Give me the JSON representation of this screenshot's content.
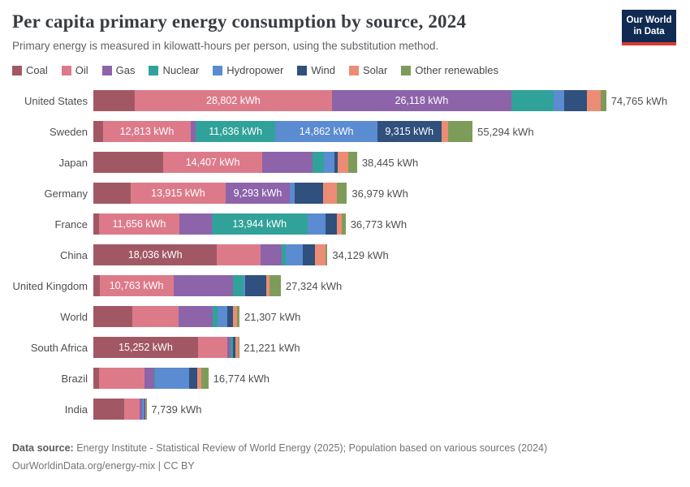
{
  "logo": {
    "line1": "Our World",
    "line2": "in Data",
    "bg": "#102a52",
    "accent": "#d73a33"
  },
  "chart_data": {
    "type": "bar",
    "stacked": true,
    "orientation": "horizontal",
    "title": "Per capita primary energy consumption by source, 2024",
    "subtitle": "Primary energy is measured in kilowatt-hours per person, using the substitution method.",
    "unit": "kWh",
    "legend_position": "top",
    "grid": false,
    "xlim": [
      0,
      76000
    ],
    "categories": [
      "United States",
      "Sweden",
      "Japan",
      "Germany",
      "France",
      "China",
      "United Kingdom",
      "World",
      "South Africa",
      "Brazil",
      "India"
    ],
    "totals": [
      74765,
      55294,
      38445,
      36979,
      36773,
      34129,
      27324,
      21307,
      21221,
      16774,
      7739
    ],
    "total_labels": [
      "74,765 kWh",
      "55,294 kWh",
      "38,445 kWh",
      "36,979 kWh",
      "36,773 kWh",
      "34,129 kWh",
      "27,324 kWh",
      "21,307 kWh",
      "21,221 kWh",
      "16,774 kWh",
      "7,739 kWh"
    ],
    "series": [
      {
        "name": "Coal",
        "color": "#a25864",
        "values": [
          6000,
          1400,
          10200,
          5400,
          850,
          18036,
          900,
          5677,
          15252,
          817,
          4450
        ],
        "labels": [
          "",
          "",
          "",
          "",
          "",
          "18,036 kWh",
          "",
          "",
          "15,252 kWh",
          "",
          ""
        ]
      },
      {
        "name": "Oil",
        "color": "#dd7a8a",
        "values": [
          28802,
          12813,
          14407,
          13915,
          11656,
          6375,
          10763,
          6804,
          4290,
          6694,
          2280
        ],
        "labels": [
          "28,802 kWh",
          "12,813 kWh",
          "14,407 kWh",
          "13,915 kWh",
          "11,656 kWh",
          "",
          "10,763 kWh",
          "",
          "",
          "",
          ""
        ]
      },
      {
        "name": "Gas",
        "color": "#8d63aa",
        "values": [
          26118,
          700,
          7320,
          9293,
          4750,
          3012,
          8728,
          4938,
          450,
          1401,
          320
        ],
        "labels": [
          "26,118 kWh",
          "",
          "",
          "9,293 kWh",
          "",
          "",
          "",
          "",
          "",
          "",
          ""
        ]
      },
      {
        "name": "Nuclear",
        "color": "#31a299",
        "values": [
          6200,
          11636,
          1680,
          0,
          13944,
          587,
          1448,
          700,
          350,
          117,
          80
        ],
        "labels": [
          "",
          "11,636 kWh",
          "",
          "",
          "13,944 kWh",
          "",
          "",
          "",
          "",
          "",
          ""
        ]
      },
      {
        "name": "Hydropower",
        "color": "#5b8bd0",
        "values": [
          1500,
          14862,
          1570,
          720,
          2600,
          2542,
          235,
          1361,
          40,
          4943,
          280
        ],
        "labels": [
          "",
          "14,862 kWh",
          "",
          "",
          "",
          "",
          "",
          "",
          "",
          "",
          ""
        ]
      },
      {
        "name": "Wind",
        "color": "#30507d",
        "values": [
          3300,
          9315,
          390,
          4150,
          1700,
          1760,
          3092,
          855,
          330,
          1168,
          140
        ],
        "labels": [
          "",
          "9,315 kWh",
          "",
          "",
          "",
          "",
          "",
          "",
          "",
          "",
          ""
        ]
      },
      {
        "name": "Solar",
        "color": "#ec8c75",
        "values": [
          2100,
          1000,
          1570,
          2000,
          710,
          1564,
          509,
          622,
          430,
          584,
          160
        ],
        "labels": [
          "",
          "",
          "",
          "",
          "",
          "",
          "",
          "",
          "",
          "",
          ""
        ]
      },
      {
        "name": "Other renewables",
        "color": "#7e9c59",
        "values": [
          745,
          3568,
          1308,
          1501,
          563,
          253,
          1649,
          350,
          79,
          1050,
          29
        ],
        "labels": [
          "",
          "",
          "",
          "",
          "",
          "",
          "",
          "",
          "",
          "",
          ""
        ]
      }
    ]
  },
  "footer": {
    "source_label": "Data source:",
    "source_text": " Energy Institute - Statistical Review of World Energy (2025); Population based on various sources (2024)",
    "line2": "OurWorldinData.org/energy-mix | CC BY"
  }
}
